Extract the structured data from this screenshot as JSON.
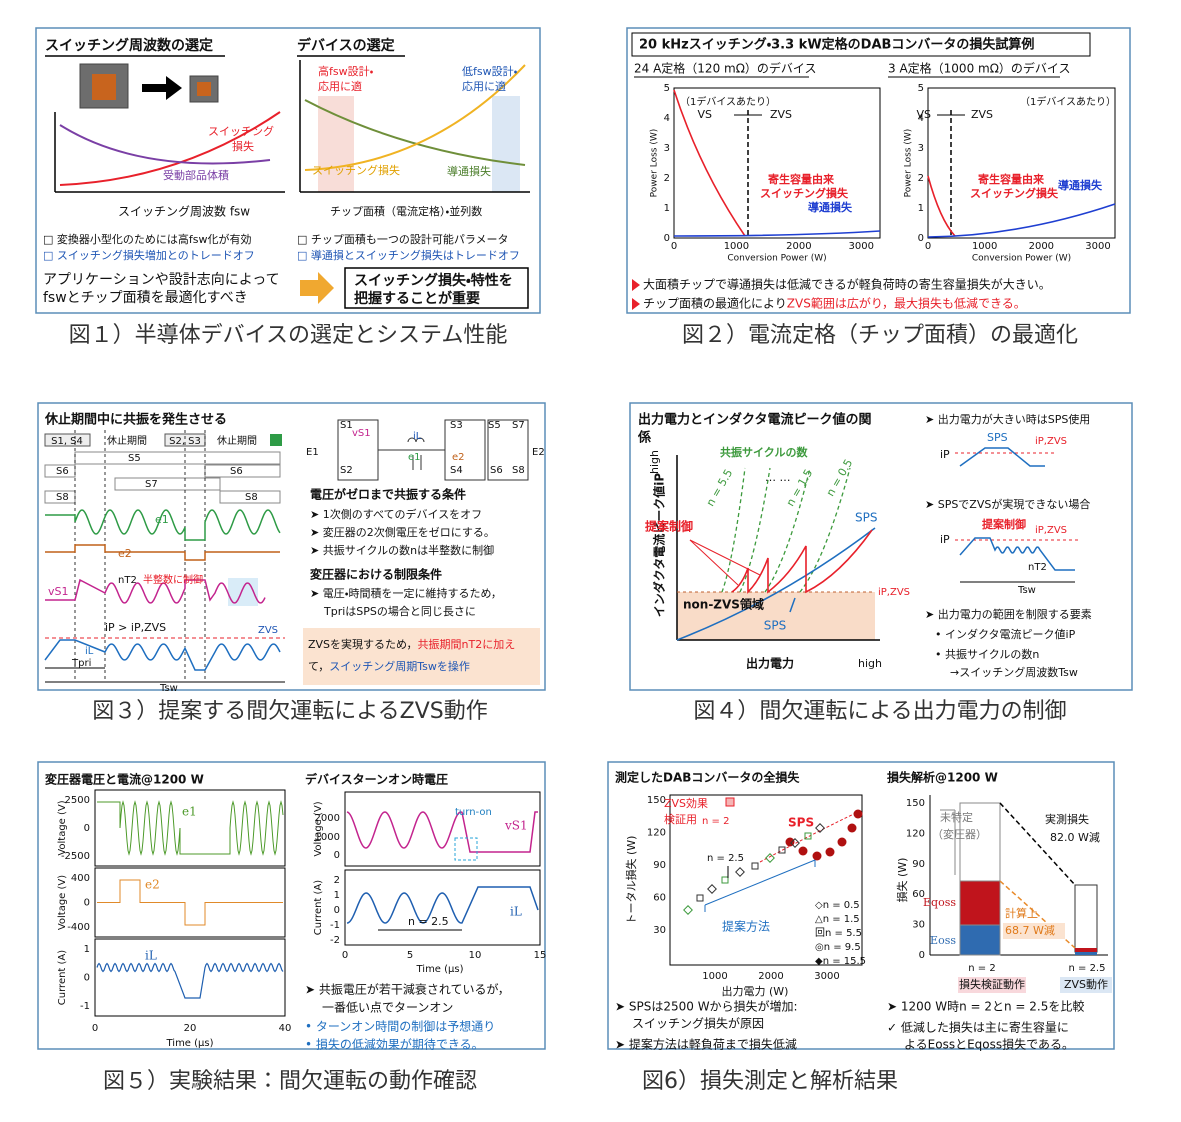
{
  "figures": [
    {
      "caption": "図１）半導体デバイスの選定とシステム性能",
      "left_title": "スイッチング周波数の選定",
      "right_title": "デバイスの選定",
      "sw_loss": [
        "スイッチング",
        "損失"
      ],
      "passive": "受動部品体積",
      "x_left": "スイッチング周波数 fsw",
      "high_fsw": [
        "高fsw設計・",
        "応用に適"
      ],
      "low_fsw": [
        "低fsw設計・",
        "応用に適"
      ],
      "sw_loss2": "スイッチング損失",
      "cond_loss": "導通損失",
      "x_right": "チップ面積（電流定格）・並列数",
      "bullets_left": [
        "□ 変換器小型化のためには高fsw化が有効",
        "□ スイッチング損失増加とのトレードオフ"
      ],
      "bullets_right": [
        "□ チップ面積も一つの設計可能パラメータ",
        "□ 導通損とスイッチング損失はトレードオフ"
      ],
      "conclusion": [
        "アプリケーションや設計志向によって",
        "fswとチップ面積を最適化すべき"
      ],
      "key_point": [
        "スイッチング損失・特性を",
        "把握することが重要"
      ]
    },
    {
      "caption": "図２）電流定格（チップ面積）の最適化",
      "title": "20 kHzスイッチング・3.3 kW定格のDABコンバータの損失試算例",
      "plots": [
        {
          "subtitle": "24 A定格（120 mΩ）のデバイス",
          "ylabel": "Power Loss (W)",
          "xlabel": "Conversion Power (W)",
          "yticks": [
            "5",
            "4",
            "3",
            "2",
            "1",
            "0"
          ],
          "xticks": [
            "0",
            "1000",
            "2000",
            "3000"
          ],
          "note": "（1デバイスあたり）",
          "vs": "VS",
          "zvs": "ZVS",
          "sw": [
            "寄生容量由来",
            "スイッチング損失"
          ],
          "cond": "導通損失"
        },
        {
          "subtitle": "3 A定格（1000 mΩ）のデバイス",
          "ylabel": "Power Loss (W)",
          "xlabel": "Conversion Power (W)",
          "yticks": [
            "5",
            "4",
            "3",
            "2",
            "1",
            "0"
          ],
          "xticks": [
            "0",
            "1000",
            "2000",
            "3000"
          ],
          "note": "（1デバイスあたり）",
          "vs": "VS",
          "zvs": "ZVS",
          "sw": [
            "寄生容量由来",
            "スイッチング損失"
          ],
          "cond": "導通損失"
        }
      ],
      "bullets": [
        "大面積チップで導通損失は低減できるが軽負荷時の寄生容量損失が大きい。",
        "チップ面積の最適化により",
        "ZVS範囲は広がり，最大損失も低減できる。"
      ]
    },
    {
      "caption": "図３）提案する間欠運転によるZVS動作",
      "title": "休止期間中に共振を発生させる",
      "timing": [
        "S1, S4",
        "休止期間",
        "S2, S3",
        "休止期間",
        "S5",
        "S6",
        "S6",
        "S7",
        "S8",
        "S8"
      ],
      "waves": {
        "e1": "e1",
        "e2": "e2",
        "vs1": "vS1",
        "nt2": "nT2",
        "half": "半整数に制御",
        "zvs": "ZVS",
        "ip": "iP > iP,ZVS",
        "il": "iL",
        "tpri": "Tpri",
        "tsw": "Tsw"
      },
      "circuit": [
        "S1",
        "S2",
        "vS1",
        "iL",
        "S3",
        "S4",
        "e1",
        "e2",
        "S5",
        "S6",
        "S7",
        "S8",
        "E1",
        "E2"
      ],
      "cond_title": "電圧がゼロまで共振する条件",
      "cond": [
        "➤ 1次側のすべてのデバイスをオフ",
        "➤ 変圧器の2次側電圧をゼロにする。",
        "➤ 共振サイクルの数nは半整数に制御"
      ],
      "limit_title": "変圧器における制限条件",
      "limit": [
        "➤ 電圧・時間積を一定に維持するため，",
        "TpriはSPSの場合と同じ長さに"
      ],
      "note": [
        "ZVSを実現するため，",
        "共振期間nT2に加え",
        "て，",
        "スイッチング周期Tswを操作"
      ]
    },
    {
      "caption": "図４）間欠運転による出力電力の制御",
      "title": [
        "出力電力とインダクタ電流ピーク値の関",
        "係"
      ],
      "plot": {
        "yhigh": "high",
        "ylabel": "インダクタ電流ピーク値iP",
        "xlabel": "出力電力",
        "xhigh": "high",
        "cycles": "共振サイクルの数",
        "n55": "n = 5.5",
        "dots": "… …",
        "n15": "n = 1.5",
        "n05": "n = 0.5",
        "proposed": "提案制御",
        "sps_top": "SPS",
        "ipzvs": "iP,ZVS",
        "nonzvs": "non-ZVS領域",
        "sps_bottom": "SPS"
      },
      "right": {
        "b1": "➤ 出力電力が大きい時はSPS使用",
        "sps": "SPS",
        "ipzvs1": "iP,ZVS",
        "ip1": "iP",
        "b2": "➤ SPSでZVSが実現できない場合",
        "proposed": "提案制御",
        "ipzvs2": "iP,ZVS",
        "ip2": "iP",
        "nt2": "nT2",
        "tsw": "Tsw",
        "b3": "➤ 出力電力の範囲を制限する要素",
        "items": [
          "•  インダクタ電流ピーク値iP",
          "•  共振サイクルの数n",
          "→スイッチング周波数Tsw"
        ]
      }
    },
    {
      "caption": "図５）実験結果：間欠運転の動作確認",
      "left_title": "変圧器電圧と電流@1200 W",
      "right_title": "デバイスターンオン時電圧",
      "left_plots": [
        {
          "ylabel": "Voltage (V)",
          "yticks": [
            "2500",
            "0",
            "-2500"
          ],
          "label": "e1"
        },
        {
          "ylabel": "Voltage (V)",
          "yticks": [
            "400",
            "0",
            "-400"
          ],
          "label": "e2"
        },
        {
          "ylabel": "Current (A)",
          "yticks": [
            "1",
            "0",
            "-1"
          ],
          "label": "iL"
        }
      ],
      "left_xticks": [
        "0",
        "20",
        "40"
      ],
      "left_xlabel": "Time (µs)",
      "right_plots": [
        {
          "ylabel": "Voltage (V)",
          "yticks": [
            "2000",
            "1000",
            "0"
          ],
          "label": "vS1",
          "turnon": "turn-on"
        },
        {
          "ylabel": "Current (A)",
          "yticks": [
            "2",
            "1",
            "0",
            "-1",
            "-2"
          ],
          "label": "iL",
          "n": "n = 2.5"
        }
      ],
      "right_xticks": [
        "0",
        "5",
        "10",
        "15"
      ],
      "right_xlabel": "Time (µs)",
      "bullets": [
        "➤ 共振電圧が若干減衰されているが，",
        "一番低い点でターンオン",
        "• ターンオン時間の制御は予想通り",
        "• 損失の低減効果が期待できる。"
      ]
    },
    {
      "caption": "図6）損失測定と解析結果",
      "left_title": "測定したDABコンバータの全損失",
      "right_title": "損失解析@1200 W",
      "scatter": {
        "ylabel": "トータル損失 (W)",
        "xlabel": "出力電力 (W)",
        "yticks": [
          "150",
          "120",
          "90",
          "60",
          "30"
        ],
        "xticks": [
          "1000",
          "2000",
          "3000"
        ],
        "zvs": [
          "ZVS効果",
          "検証用"
        ],
        "n2": "n = 2",
        "sps": "SPS",
        "n25": "n = 2.5",
        "proposed": "提案方法",
        "legend": [
          "◇n = 0.5",
          "△n = 1.5",
          "回n = 5.5",
          "◎n = 9.5",
          "◆n = 15.5"
        ]
      },
      "bars": {
        "ylabel": "損失 (W)",
        "yticks": [
          "150",
          "120",
          "90",
          "60",
          "30",
          "0"
        ],
        "unknown": [
          "未特定",
          "（変圧器）"
        ],
        "measured": [
          "実測損失",
          "82.0 W減"
        ],
        "eqoss": "Eqoss",
        "eoss": "Eoss",
        "calc": [
          "計算上",
          "68.7 W減"
        ],
        "bar1": [
          "n = 2",
          "損失検証動作"
        ],
        "bar2": [
          "n = 2.5",
          "ZVS動作"
        ]
      },
      "bullets_left": [
        "➤ SPSは2500 Wから損失が増加:",
        "スイッチング損失が原因",
        "➤ 提案方法は軽負荷まで損失低減"
      ],
      "bullets_right": [
        "➤ 1200 W時n = 2とn = 2.5を比較",
        "✓ 低減した損失は主に寄生容量に",
        "よるEossとEqoss損失である。"
      ]
    }
  ]
}
